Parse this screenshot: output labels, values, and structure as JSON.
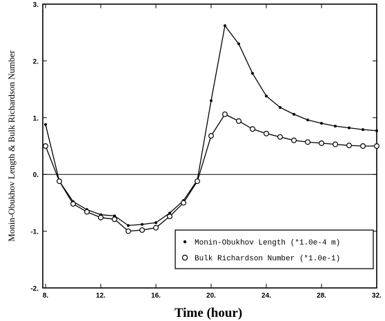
{
  "chart_data": {
    "type": "line",
    "title": "",
    "xlabel": "Time (hour)",
    "ylabel": "Monin-Obukhov Length & Bulk Richardson Number",
    "xlim": [
      7.8,
      32
    ],
    "ylim": [
      -2,
      3
    ],
    "x_ticks": [
      8,
      12,
      16,
      20,
      24,
      28,
      32
    ],
    "x_tick_labels": [
      "8.",
      "12.",
      "16.",
      "20.",
      "24.",
      "28.",
      "32."
    ],
    "y_ticks": [
      -2,
      -1,
      0,
      1,
      2,
      3
    ],
    "y_tick_labels": [
      "-2.",
      "-1.",
      "0.",
      "1.",
      "2.",
      "3."
    ],
    "zero_line": true,
    "grid": false,
    "legend_position": "bottom-right",
    "series": [
      {
        "name": "Monin-Obukhov Length (*1.0e-4 m)",
        "marker": "filled-dot",
        "x": [
          8,
          9,
          10,
          11,
          12,
          13,
          14,
          15,
          16,
          17,
          18,
          19,
          20,
          21,
          22,
          23,
          24,
          25,
          26,
          27,
          28,
          29,
          30,
          31,
          32
        ],
        "y": [
          0.88,
          -0.12,
          -0.48,
          -0.62,
          -0.71,
          -0.73,
          -0.9,
          -0.88,
          -0.85,
          -0.68,
          -0.46,
          -0.1,
          1.3,
          2.62,
          2.3,
          1.78,
          1.38,
          1.18,
          1.06,
          0.96,
          0.9,
          0.85,
          0.82,
          0.79,
          0.77
        ]
      },
      {
        "name": "Bulk Richardson Number (*1.0e-1)",
        "marker": "open-circle",
        "x": [
          8,
          9,
          10,
          11,
          12,
          13,
          14,
          15,
          16,
          17,
          18,
          19,
          20,
          21,
          22,
          23,
          24,
          25,
          26,
          27,
          28,
          29,
          30,
          31,
          32
        ],
        "y": [
          0.5,
          -0.12,
          -0.52,
          -0.66,
          -0.76,
          -0.79,
          -1.0,
          -0.98,
          -0.94,
          -0.74,
          -0.5,
          -0.12,
          0.68,
          1.06,
          0.94,
          0.8,
          0.72,
          0.66,
          0.6,
          0.57,
          0.55,
          0.53,
          0.51,
          0.5,
          0.5
        ]
      }
    ]
  }
}
